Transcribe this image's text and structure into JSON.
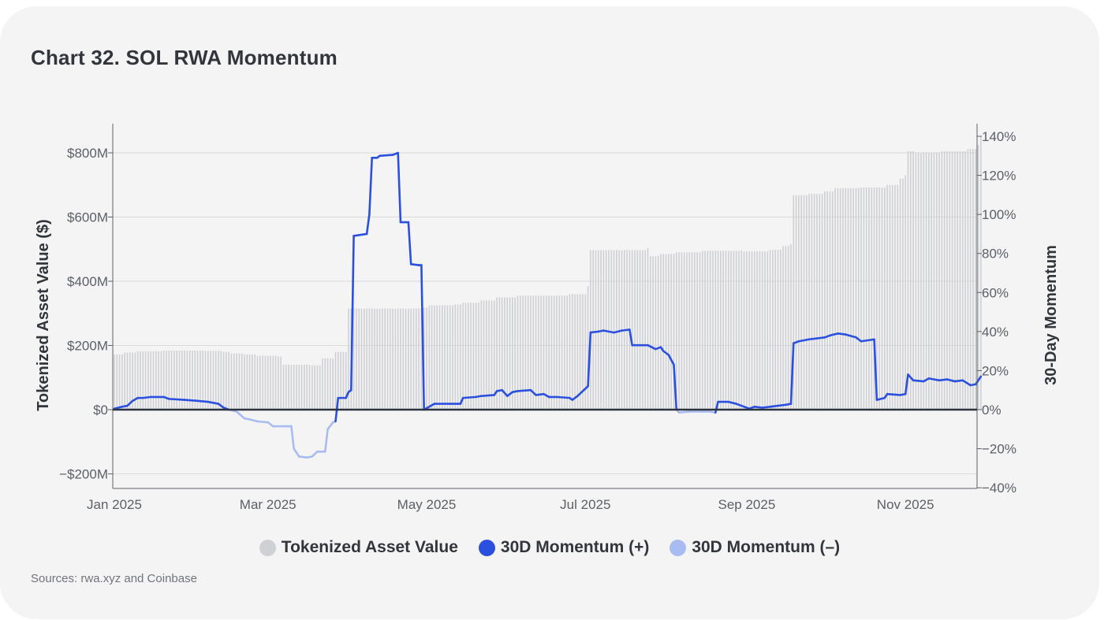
{
  "title": "Chart 32. SOL RWA Momentum",
  "source": "Sources: rwa.xyz and Coinbase",
  "colors": {
    "tokenized": "#cfd0d4",
    "momentum_pos": "#2b50e0",
    "momentum_neg": "#a8bcf2",
    "zero_line": "#2e3340",
    "grid": "#d8d9dc"
  },
  "chart_data": {
    "type": "bar+line",
    "title": "Chart 32. SOL RWA Momentum",
    "x_ticks": [
      "Jan 2025",
      "Mar 2025",
      "May 2025",
      "Jul 2025",
      "Sep 2025",
      "Nov 2025"
    ],
    "x_range": [
      "2025-01-01",
      "2025-11-30"
    ],
    "y_left": {
      "label": "Tokenized Asset Value ($)",
      "range": [
        -250,
        900
      ],
      "ticks": [
        -200,
        0,
        200,
        400,
        600,
        800
      ],
      "tick_labels": [
        "−$200M",
        "$0",
        "$200M",
        "$400M",
        "$600M",
        "$800M"
      ]
    },
    "y_right": {
      "label": "30-Day Momentum",
      "range": [
        -40,
        145
      ],
      "ticks": [
        -40,
        -20,
        0,
        20,
        40,
        60,
        80,
        100,
        120,
        140
      ],
      "tick_labels": [
        "−40%",
        "−20%",
        "0%",
        "20%",
        "40%",
        "60%",
        "80%",
        "100%",
        "120%",
        "140%"
      ]
    },
    "legend": [
      "Tokenized Asset Value",
      "30D Momentum (+)",
      "30D Momentum (–)"
    ],
    "legend_position": "bottom-center",
    "grid": true,
    "tokenized_asset_value_musd": [
      [
        "2025-01-01",
        172
      ],
      [
        "2025-01-05",
        178
      ],
      [
        "2025-01-10",
        182
      ],
      [
        "2025-01-20",
        184
      ],
      [
        "2025-02-05",
        183
      ],
      [
        "2025-02-12",
        180
      ],
      [
        "2025-02-15",
        175
      ],
      [
        "2025-02-20",
        172
      ],
      [
        "2025-02-25",
        168
      ],
      [
        "2025-03-05",
        165
      ],
      [
        "2025-03-07",
        140
      ],
      [
        "2025-03-18",
        138
      ],
      [
        "2025-03-22",
        160
      ],
      [
        "2025-03-27",
        180
      ],
      [
        "2025-04-01",
        315
      ],
      [
        "2025-04-30",
        318
      ],
      [
        "2025-05-02",
        325
      ],
      [
        "2025-05-12",
        328
      ],
      [
        "2025-05-15",
        333
      ],
      [
        "2025-05-22",
        340
      ],
      [
        "2025-05-28",
        350
      ],
      [
        "2025-06-05",
        355
      ],
      [
        "2025-06-25",
        360
      ],
      [
        "2025-07-02",
        385
      ],
      [
        "2025-07-03",
        497
      ],
      [
        "2025-07-25",
        503
      ],
      [
        "2025-07-26",
        478
      ],
      [
        "2025-07-30",
        485
      ],
      [
        "2025-08-05",
        490
      ],
      [
        "2025-08-15",
        495
      ],
      [
        "2025-08-31",
        493
      ],
      [
        "2025-09-10",
        498
      ],
      [
        "2025-09-15",
        510
      ],
      [
        "2025-09-18",
        515
      ],
      [
        "2025-09-19",
        668
      ],
      [
        "2025-09-25",
        672
      ],
      [
        "2025-10-01",
        680
      ],
      [
        "2025-10-05",
        690
      ],
      [
        "2025-10-15",
        692
      ],
      [
        "2025-10-25",
        700
      ],
      [
        "2025-10-30",
        720
      ],
      [
        "2025-11-01",
        730
      ],
      [
        "2025-11-02",
        805
      ],
      [
        "2025-11-05",
        800
      ],
      [
        "2025-11-15",
        805
      ],
      [
        "2025-11-25",
        812
      ],
      [
        "2025-11-29",
        825
      ],
      [
        "2025-11-30",
        850
      ]
    ],
    "momentum_30d_pct": [
      [
        "2025-01-01",
        0.5
      ],
      [
        "2025-01-04",
        1.5
      ],
      [
        "2025-01-06",
        2
      ],
      [
        "2025-01-08",
        4.5
      ],
      [
        "2025-01-10",
        6
      ],
      [
        "2025-01-12",
        6
      ],
      [
        "2025-01-15",
        6.5
      ],
      [
        "2025-01-20",
        6.5
      ],
      [
        "2025-01-22",
        5.5
      ],
      [
        "2025-01-28",
        5
      ],
      [
        "2025-02-02",
        4.5
      ],
      [
        "2025-02-06",
        4
      ],
      [
        "2025-02-10",
        3
      ],
      [
        "2025-02-12",
        1
      ],
      [
        "2025-02-14",
        0
      ],
      [
        "2025-02-17",
        -1
      ],
      [
        "2025-02-20",
        -4.5
      ],
      [
        "2025-02-22",
        -5
      ],
      [
        "2025-02-25",
        -6
      ],
      [
        "2025-03-01",
        -6.5
      ],
      [
        "2025-03-03",
        -8.5
      ],
      [
        "2025-03-08",
        -8.5
      ],
      [
        "2025-03-10",
        -8.5
      ],
      [
        "2025-03-11",
        -20
      ],
      [
        "2025-03-13",
        -24
      ],
      [
        "2025-03-16",
        -24.5
      ],
      [
        "2025-03-18",
        -24
      ],
      [
        "2025-03-20",
        -21.5
      ],
      [
        "2025-03-23",
        -21.5
      ],
      [
        "2025-03-24",
        -10
      ],
      [
        "2025-03-26",
        -6.5
      ],
      [
        "2025-03-27",
        -6
      ],
      [
        "2025-03-28",
        6
      ],
      [
        "2025-03-31",
        6
      ],
      [
        "2025-04-01",
        9
      ],
      [
        "2025-04-02",
        10
      ],
      [
        "2025-04-03",
        89
      ],
      [
        "2025-04-08",
        90
      ],
      [
        "2025-04-09",
        100
      ],
      [
        "2025-04-10",
        129
      ],
      [
        "2025-04-12",
        129
      ],
      [
        "2025-04-13",
        130
      ],
      [
        "2025-04-18",
        130.5
      ],
      [
        "2025-04-20",
        131.5
      ],
      [
        "2025-04-21",
        96
      ],
      [
        "2025-04-24",
        96
      ],
      [
        "2025-04-25",
        74.5
      ],
      [
        "2025-04-28",
        74
      ],
      [
        "2025-04-29",
        74
      ],
      [
        "2025-04-30",
        0
      ],
      [
        "2025-05-04",
        3
      ],
      [
        "2025-05-10",
        3
      ],
      [
        "2025-05-14",
        3
      ],
      [
        "2025-05-15",
        6
      ],
      [
        "2025-05-20",
        6.5
      ],
      [
        "2025-05-22",
        7
      ],
      [
        "2025-05-27",
        7.5
      ],
      [
        "2025-05-28",
        9.5
      ],
      [
        "2025-05-30",
        10
      ],
      [
        "2025-06-01",
        7
      ],
      [
        "2025-06-03",
        9
      ],
      [
        "2025-06-05",
        9.5
      ],
      [
        "2025-06-10",
        10
      ],
      [
        "2025-06-12",
        7.5
      ],
      [
        "2025-06-15",
        8
      ],
      [
        "2025-06-17",
        6.5
      ],
      [
        "2025-06-20",
        6.5
      ],
      [
        "2025-06-25",
        6
      ],
      [
        "2025-06-26",
        5
      ],
      [
        "2025-06-28",
        7
      ],
      [
        "2025-07-02",
        12
      ],
      [
        "2025-07-03",
        39.5
      ],
      [
        "2025-07-06",
        40
      ],
      [
        "2025-07-08",
        40.5
      ],
      [
        "2025-07-12",
        39.5
      ],
      [
        "2025-07-15",
        40.5
      ],
      [
        "2025-07-18",
        41
      ],
      [
        "2025-07-19",
        33
      ],
      [
        "2025-07-25",
        33
      ],
      [
        "2025-07-28",
        31
      ],
      [
        "2025-07-30",
        32
      ],
      [
        "2025-07-31",
        30
      ],
      [
        "2025-08-02",
        28
      ],
      [
        "2025-08-04",
        23
      ],
      [
        "2025-08-05",
        0
      ],
      [
        "2025-08-06",
        -1.5
      ],
      [
        "2025-08-10",
        -1
      ],
      [
        "2025-08-15",
        -1
      ],
      [
        "2025-08-18",
        -1
      ],
      [
        "2025-08-20",
        -1.5
      ],
      [
        "2025-08-21",
        4
      ],
      [
        "2025-08-25",
        4
      ],
      [
        "2025-08-28",
        3
      ],
      [
        "2025-08-30",
        2
      ],
      [
        "2025-09-02",
        0.5
      ],
      [
        "2025-09-04",
        1.5
      ],
      [
        "2025-09-07",
        1
      ],
      [
        "2025-09-10",
        1.5
      ],
      [
        "2025-09-13",
        2
      ],
      [
        "2025-09-16",
        2.5
      ],
      [
        "2025-09-18",
        3
      ],
      [
        "2025-09-19",
        34
      ],
      [
        "2025-09-21",
        35
      ],
      [
        "2025-09-25",
        36
      ],
      [
        "2025-10-01",
        37
      ],
      [
        "2025-10-03",
        38
      ],
      [
        "2025-10-06",
        39
      ],
      [
        "2025-10-09",
        38.5
      ],
      [
        "2025-10-13",
        37
      ],
      [
        "2025-10-15",
        35
      ],
      [
        "2025-10-20",
        36
      ],
      [
        "2025-10-21",
        5
      ],
      [
        "2025-10-24",
        6
      ],
      [
        "2025-10-25",
        8
      ],
      [
        "2025-10-30",
        7.5
      ],
      [
        "2025-11-01",
        8
      ],
      [
        "2025-11-02",
        18
      ],
      [
        "2025-11-04",
        15
      ],
      [
        "2025-11-08",
        14.5
      ],
      [
        "2025-11-10",
        16
      ],
      [
        "2025-11-14",
        15
      ],
      [
        "2025-11-17",
        15.5
      ],
      [
        "2025-11-20",
        14.5
      ],
      [
        "2025-11-23",
        15
      ],
      [
        "2025-11-26",
        12.5
      ],
      [
        "2025-11-28",
        13
      ],
      [
        "2025-11-30",
        17
      ]
    ]
  }
}
